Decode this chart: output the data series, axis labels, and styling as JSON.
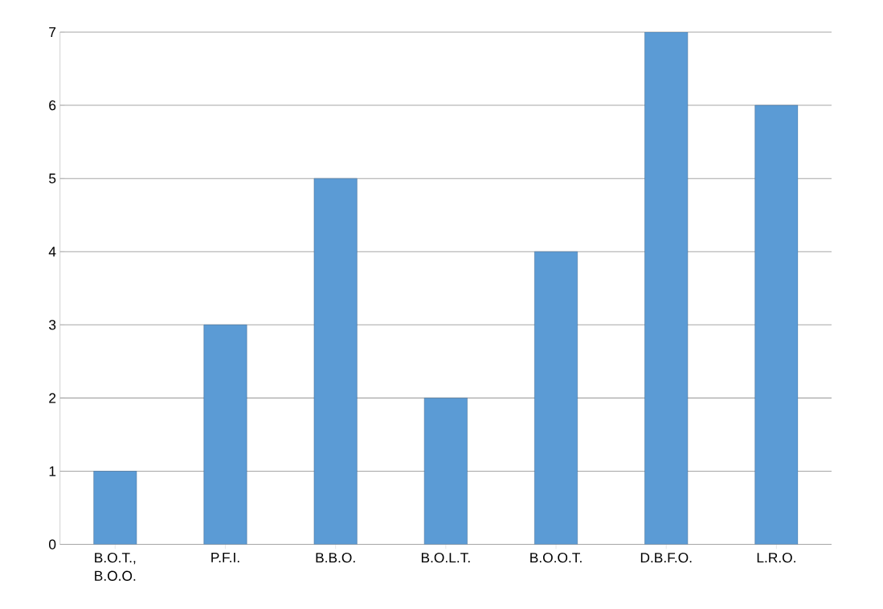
{
  "chart_data": {
    "type": "bar",
    "categories": [
      "B.O.T., B.O.O.",
      "P.F.I.",
      "B.B.O.",
      "B.O.L.T.",
      "B.O.O.T.",
      "D.B.F.O.",
      "L.R.O."
    ],
    "values": [
      1,
      3,
      5,
      2,
      4,
      7,
      6
    ],
    "color": "#5b9bd5",
    "ylim": [
      0,
      7
    ],
    "yticks": [
      0,
      1,
      2,
      3,
      4,
      5,
      6,
      7
    ],
    "grid": "y"
  }
}
